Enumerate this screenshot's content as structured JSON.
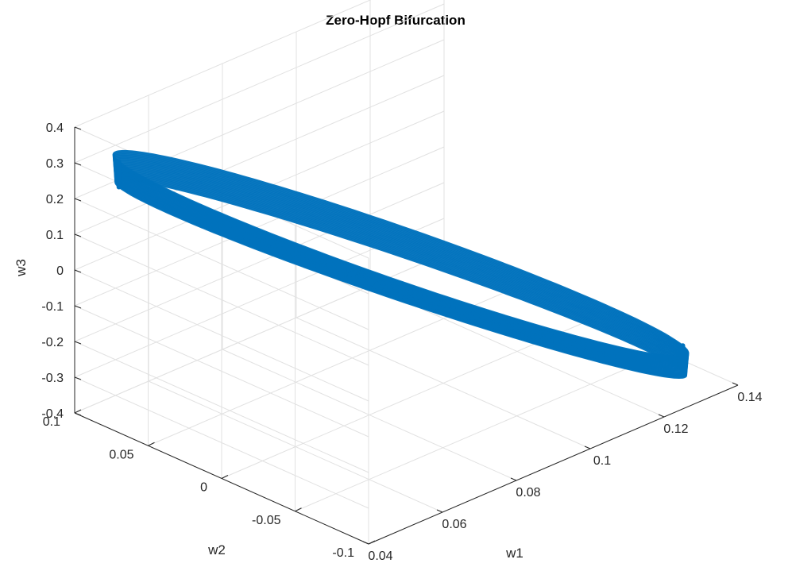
{
  "chart_data": {
    "type": "surface3d",
    "title": "Zero-Hopf Bifurcation",
    "xlabel": "w1",
    "ylabel": "w2",
    "zlabel": "w3",
    "xlim": [
      0.04,
      0.14
    ],
    "ylim": [
      -0.1,
      0.1
    ],
    "zlim": [
      -0.4,
      0.4
    ],
    "x_ticks": [
      "0.04",
      "0.06",
      "0.08",
      "0.1",
      "0.12",
      "0.14"
    ],
    "y_ticks": [
      "-0.1",
      "-0.05",
      "0",
      "0.05",
      "0.1"
    ],
    "z_ticks": [
      "-0.4",
      "-0.3",
      "-0.2",
      "-0.1",
      "0",
      "0.1",
      "0.2",
      "0.3",
      "0.4"
    ],
    "grid": true,
    "color": "#0072BD",
    "orbit": {
      "w1_range": [
        0.048,
        0.133
      ],
      "w2_range": [
        -0.08,
        0.09
      ],
      "w3_range": [
        -0.33,
        0.25
      ]
    }
  }
}
